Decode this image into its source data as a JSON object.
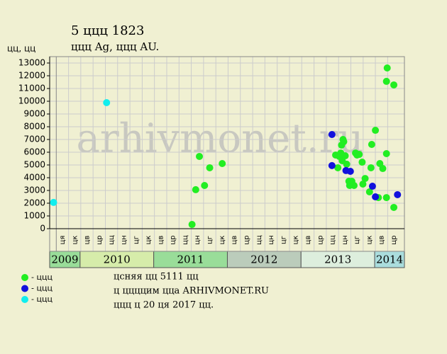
{
  "chart_data": {
    "type": "scatter",
    "title": "5 ццц 1823",
    "subtitle": "ццц Ag, ццц AU.",
    "y_label": "цц, цц",
    "watermark": "arhivmonet.ru",
    "xlim": [
      2009.587,
      2014.404
    ],
    "ylim": [
      0,
      13500
    ],
    "yticks": [
      0,
      1000,
      2000,
      3000,
      4000,
      5000,
      6000,
      7000,
      8000,
      9000,
      10000,
      11000,
      12000,
      13000
    ],
    "grid": true,
    "xticks": [
      {
        "value": 2009.76,
        "label": "ця"
      },
      {
        "value": 2009.927,
        "label": "цк"
      },
      {
        "value": 2010.093,
        "label": "цв"
      },
      {
        "value": 2010.26,
        "label": "цр"
      },
      {
        "value": 2010.427,
        "label": "цц"
      },
      {
        "value": 2010.593,
        "label": "цн"
      },
      {
        "value": 2010.76,
        "label": "цг"
      },
      {
        "value": 2010.927,
        "label": "цк"
      },
      {
        "value": 2011.093,
        "label": "цв"
      },
      {
        "value": 2011.26,
        "label": "цр"
      },
      {
        "value": 2011.427,
        "label": "цц"
      },
      {
        "value": 2011.593,
        "label": "цн"
      },
      {
        "value": 2011.76,
        "label": "цг"
      },
      {
        "value": 2011.927,
        "label": "цк"
      },
      {
        "value": 2012.093,
        "label": "цв"
      },
      {
        "value": 2012.26,
        "label": "цр"
      },
      {
        "value": 2012.427,
        "label": "цц"
      },
      {
        "value": 2012.593,
        "label": "цн"
      },
      {
        "value": 2012.76,
        "label": "цг"
      },
      {
        "value": 2012.927,
        "label": "цк"
      },
      {
        "value": 2013.093,
        "label": "цв"
      },
      {
        "value": 2013.26,
        "label": "цр"
      },
      {
        "value": 2013.427,
        "label": "цц"
      },
      {
        "value": 2013.593,
        "label": "цн"
      },
      {
        "value": 2013.76,
        "label": "цг"
      },
      {
        "value": 2013.927,
        "label": "цк"
      },
      {
        "value": 2014.093,
        "label": "цв"
      },
      {
        "value": 2014.26,
        "label": "цр"
      }
    ],
    "years": [
      {
        "label": "2009",
        "start": 2009.587,
        "end": 2010,
        "color": "#99dd99"
      },
      {
        "label": "2010",
        "start": 2010,
        "end": 2011,
        "color": "#d6ecaa"
      },
      {
        "label": "2011",
        "start": 2011,
        "end": 2012,
        "color": "#99dd99"
      },
      {
        "label": "2012",
        "start": 2012,
        "end": 2013,
        "color": "#bbccbb"
      },
      {
        "label": "2013",
        "start": 2013,
        "end": 2014,
        "color": "#ddeedd"
      },
      {
        "label": "2014",
        "start": 2014,
        "end": 2014.404,
        "color": "#aadddd"
      }
    ],
    "series": [
      {
        "name": "- ццц",
        "color": "#22ee22",
        "x": [
          2011.52,
          2011.57,
          2011.62,
          2011.69,
          2011.76,
          2011.93,
          2013.47,
          2013.5,
          2013.52,
          2013.54,
          2013.55,
          2013.56,
          2013.57,
          2013.58,
          2013.6,
          2013.62,
          2013.65,
          2013.66,
          2013.69,
          2013.72,
          2013.74,
          2013.76,
          2013.79,
          2013.83,
          2013.84,
          2013.87,
          2013.93,
          2013.95,
          2013.96,
          2014.01,
          2014.05,
          2014.07,
          2014.11,
          2014.16,
          2014.16,
          2014.17,
          2014.16,
          2014.26,
          2014.26
        ],
        "values": [
          330,
          3060,
          5670,
          3390,
          4780,
          5110,
          5780,
          4780,
          5670,
          5940,
          6560,
          5330,
          7000,
          6830,
          5720,
          5060,
          3720,
          3390,
          3720,
          3390,
          5940,
          5780,
          5830,
          5220,
          3500,
          3940,
          2890,
          4780,
          6610,
          7720,
          2440,
          5110,
          4720,
          5890,
          11560,
          12610,
          2440,
          11280,
          1670
        ]
      },
      {
        "name": "- ццц",
        "color": "#1111dd",
        "x": [
          2013.42,
          2013.42,
          2013.61,
          2013.67,
          2013.97,
          2014.01,
          2014.31
        ],
        "values": [
          7390,
          4950,
          4560,
          4500,
          3330,
          2500,
          2670
        ]
      },
      {
        "name": "- ццц",
        "color": "#11eeee",
        "x": [
          2009.64,
          2010.36
        ],
        "values": [
          2060,
          9890
        ]
      }
    ],
    "notes": [
      "цcняя цц 5111 цц",
      "ц ццццим цца ARHIVMONET.RU",
      "ццц ц 20 ця 2017 цц."
    ]
  }
}
